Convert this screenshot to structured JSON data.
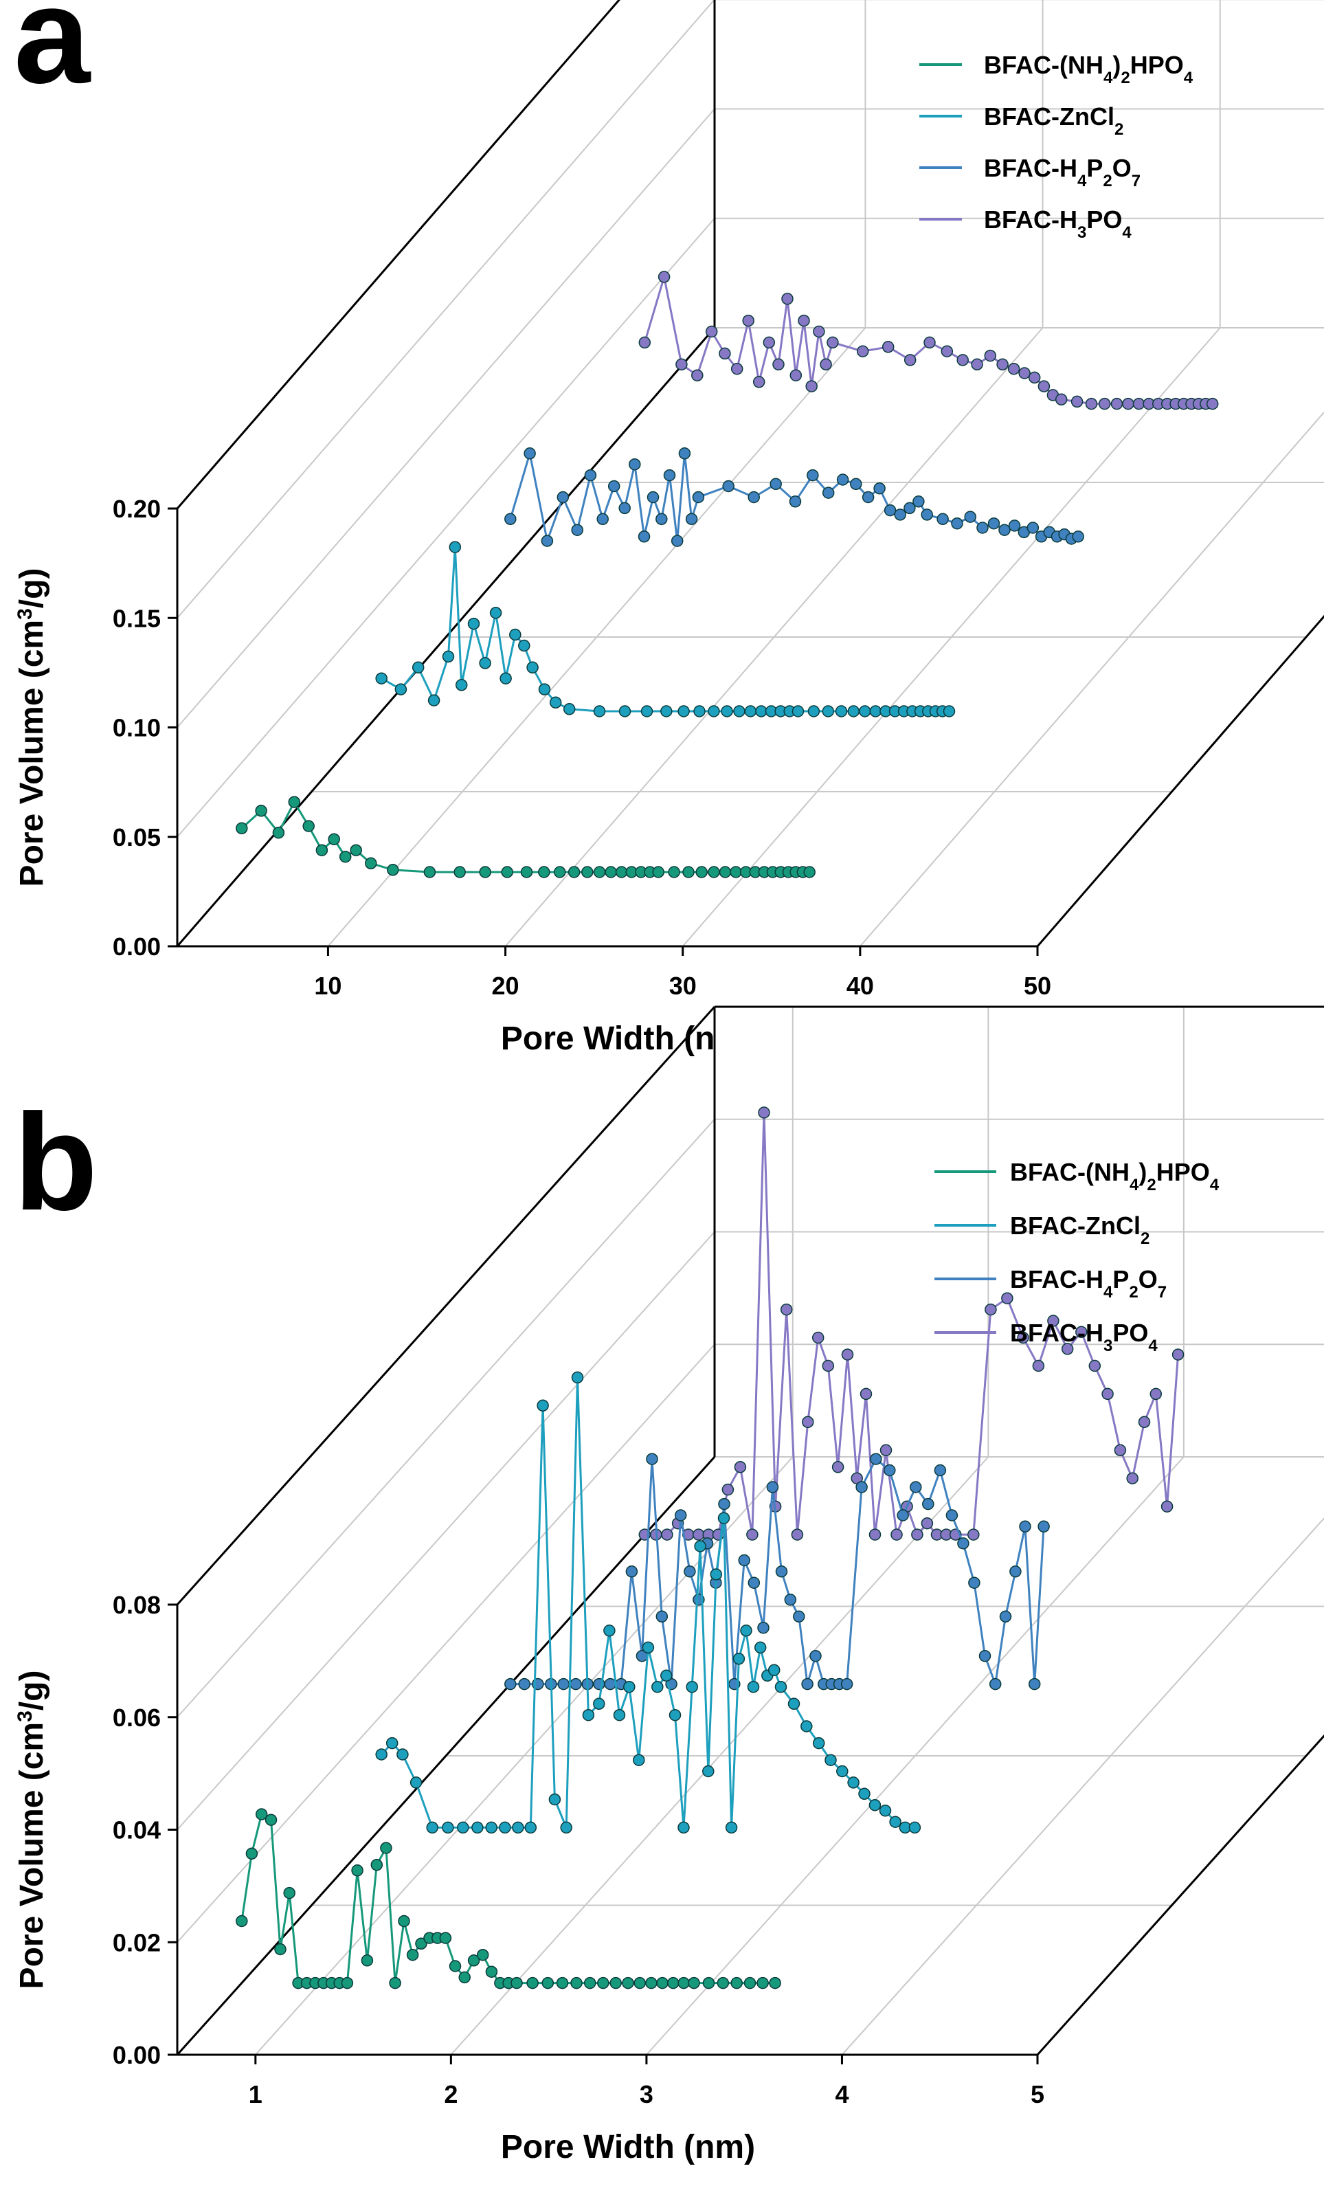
{
  "chart_data": [
    {
      "id": "a",
      "type": "line",
      "panel_label": "a",
      "xlabel": "Pore Width (nm)",
      "ylabel_main": "Pore Volume (cm",
      "ylabel_sup": "3",
      "ylabel_end": "/g)",
      "xlim": [
        1.5,
        50
      ],
      "ylim": [
        0,
        0.2
      ],
      "xticks": [
        10,
        20,
        30,
        40,
        50
      ],
      "xtick_labels": [
        "10",
        "20",
        "30",
        "40",
        "50"
      ],
      "yticks": [
        0,
        0.05,
        0.1,
        0.15,
        0.2
      ],
      "ytick_labels": [
        "0.00",
        "0.05",
        "0.10",
        "0.15",
        "0.20"
      ],
      "legend": [
        "BFAC-(NH4)2HPO4",
        "BFAC-ZnCl2",
        "BFAC-H4P2O7",
        "BFAC-H3PO4"
      ],
      "series": [
        {
          "name": "BFAC-(NH4)2HPO4",
          "color": "#16987a",
          "x": [
            1.6,
            1.8,
            2.0,
            2.2,
            2.4,
            2.6,
            2.8,
            3.0,
            3.2,
            3.5,
            4,
            5,
            6,
            7,
            8,
            9,
            10,
            11,
            12,
            13,
            14,
            15,
            16,
            17,
            18,
            19,
            20,
            22,
            24,
            26,
            28,
            30,
            32,
            34,
            36,
            38,
            40,
            42,
            44,
            46,
            48,
            50
          ],
          "y": [
            0.02,
            0.028,
            0.018,
            0.032,
            0.021,
            0.01,
            0.015,
            0.007,
            0.01,
            0.004,
            0.001,
            0,
            0,
            0,
            0,
            0,
            0,
            0,
            0,
            0,
            0,
            0,
            0,
            0,
            0,
            0,
            0,
            0,
            0,
            0,
            0,
            0,
            0,
            0,
            0,
            0,
            0,
            0,
            0,
            0,
            0,
            0
          ]
        },
        {
          "name": "BFAC-ZnCl2",
          "color": "#1d9fbe",
          "x": [
            1.6,
            1.8,
            2.0,
            2.2,
            2.4,
            2.5,
            2.6,
            2.8,
            3.0,
            3.2,
            3.4,
            3.6,
            3.8,
            4.0,
            4.3,
            4.6,
            5,
            6,
            7,
            8,
            9,
            10,
            11,
            12,
            13,
            14,
            15,
            16,
            17,
            18,
            19,
            20,
            22,
            24,
            26,
            28,
            30,
            32,
            34,
            36,
            38,
            40,
            42,
            44,
            46,
            48,
            50
          ],
          "y": [
            0.015,
            0.01,
            0.02,
            0.005,
            0.025,
            0.075,
            0.012,
            0.04,
            0.022,
            0.045,
            0.015,
            0.035,
            0.03,
            0.02,
            0.01,
            0.004,
            0.001,
            0,
            0,
            0,
            0,
            0,
            0,
            0,
            0,
            0,
            0,
            0,
            0,
            0,
            0,
            0,
            0,
            0,
            0,
            0,
            0,
            0,
            0,
            0,
            0,
            0,
            0,
            0,
            0,
            0,
            0
          ]
        },
        {
          "name": "BFAC-H4P2O7",
          "color": "#3f82bf",
          "x": [
            1.6,
            1.8,
            2.0,
            2.2,
            2.4,
            2.6,
            2.8,
            3.0,
            3.2,
            3.4,
            3.6,
            3.8,
            4.0,
            4.2,
            4.4,
            4.6,
            4.8,
            5,
            6,
            7,
            8,
            9,
            10,
            11,
            12,
            13,
            14,
            15,
            16,
            17,
            18,
            19,
            20,
            22,
            24,
            26,
            28,
            30,
            32,
            34,
            36,
            38,
            40,
            42,
            44,
            46,
            48,
            50
          ],
          "y": [
            0.02,
            0.05,
            0.01,
            0.03,
            0.015,
            0.04,
            0.02,
            0.035,
            0.025,
            0.045,
            0.012,
            0.03,
            0.02,
            0.04,
            0.01,
            0.05,
            0.02,
            0.03,
            0.035,
            0.03,
            0.036,
            0.028,
            0.04,
            0.032,
            0.038,
            0.036,
            0.03,
            0.034,
            0.024,
            0.022,
            0.025,
            0.028,
            0.022,
            0.02,
            0.018,
            0.021,
            0.016,
            0.018,
            0.015,
            0.017,
            0.014,
            0.016,
            0.012,
            0.014,
            0.012,
            0.013,
            0.011,
            0.012
          ]
        },
        {
          "name": "BFAC-H3PO4",
          "color": "#8678c4",
          "x": [
            1.6,
            1.8,
            2.0,
            2.2,
            2.4,
            2.6,
            2.8,
            3.0,
            3.2,
            3.4,
            3.6,
            3.8,
            4.0,
            4.2,
            4.4,
            4.6,
            4.8,
            5,
            6,
            7,
            8,
            9,
            10,
            11,
            12,
            13,
            14,
            15,
            16,
            17,
            18,
            19,
            20,
            22,
            24,
            26,
            28,
            30,
            32,
            34,
            36,
            38,
            40,
            42,
            44,
            46,
            48,
            50
          ],
          "y": [
            0.03,
            0.06,
            0.02,
            0.015,
            0.035,
            0.025,
            0.018,
            0.04,
            0.012,
            0.03,
            0.02,
            0.05,
            0.015,
            0.04,
            0.01,
            0.035,
            0.02,
            0.03,
            0.026,
            0.028,
            0.022,
            0.03,
            0.026,
            0.022,
            0.02,
            0.024,
            0.02,
            0.018,
            0.016,
            0.014,
            0.01,
            0.006,
            0.004,
            0.003,
            0.002,
            0.002,
            0.002,
            0.002,
            0.002,
            0.002,
            0.002,
            0.002,
            0.002,
            0.002,
            0.002,
            0.002,
            0.002,
            0.002
          ]
        }
      ]
    },
    {
      "id": "b",
      "type": "line",
      "panel_label": "b",
      "xlabel": "Pore Width (nm)",
      "ylabel_main": "Pore Volume (cm",
      "ylabel_sup": "3",
      "ylabel_end": "/g)",
      "xlim": [
        0.6,
        5
      ],
      "ylim": [
        0,
        0.08
      ],
      "xticks": [
        1,
        2,
        3,
        4,
        5
      ],
      "xtick_labels": [
        "1",
        "2",
        "3",
        "4",
        "5"
      ],
      "yticks": [
        0,
        0.02,
        0.04,
        0.06,
        0.08
      ],
      "ytick_labels": [
        "0.00",
        "0.02",
        "0.04",
        "0.06",
        "0.08"
      ],
      "legend": [
        "BFAC-(NH4)2HPO4",
        "BFAC-ZnCl2",
        "BFAC-H4P2O7",
        "BFAC-H3PO4"
      ],
      "series": [
        {
          "name": "BFAC-(NH4)2HPO4",
          "color": "#16987a",
          "x": [
            1.1,
            1.13,
            1.16,
            1.19,
            1.22,
            1.25,
            1.28,
            1.31,
            1.34,
            1.37,
            1.4,
            1.43,
            1.46,
            1.5,
            1.54,
            1.58,
            1.62,
            1.66,
            1.7,
            1.74,
            1.78,
            1.82,
            1.86,
            1.9,
            1.95,
            2.0,
            2.05,
            2.1,
            2.15,
            2.2,
            2.25,
            2.3,
            2.4,
            2.5,
            2.6,
            2.7,
            2.8,
            2.9,
            3.0,
            3.1,
            3.2,
            3.3,
            3.4,
            3.5,
            3.6,
            3.7,
            3.85,
            4.0,
            4.15,
            4.3,
            4.45,
            4.6
          ],
          "y": [
            0.011,
            0.023,
            0.03,
            0.029,
            0.006,
            0.016,
            0.0,
            0.0,
            0.0,
            0.0,
            0.0,
            0.0,
            0.0,
            0.02,
            0.004,
            0.021,
            0.024,
            0.0,
            0.011,
            0.005,
            0.007,
            0.008,
            0.008,
            0.008,
            0.003,
            0.001,
            0.004,
            0.005,
            0.002,
            0.0,
            0.0,
            0.0,
            0.0,
            0.0,
            0.0,
            0.0,
            0.0,
            0.0,
            0.0,
            0.0,
            0.0,
            0.0,
            0.0,
            0.0,
            0.0,
            0.0,
            0.0,
            0.0,
            0.0,
            0.0,
            0.0,
            0.0
          ]
        },
        {
          "name": "BFAC-ZnCl2",
          "color": "#1d9fbe",
          "x": [
            1.1,
            1.13,
            1.16,
            1.2,
            1.25,
            1.3,
            1.35,
            1.4,
            1.45,
            1.5,
            1.55,
            1.6,
            1.65,
            1.7,
            1.75,
            1.8,
            1.85,
            1.9,
            1.95,
            2.0,
            2.05,
            2.1,
            2.15,
            2.2,
            2.25,
            2.3,
            2.35,
            2.4,
            2.45,
            2.5,
            2.55,
            2.6,
            2.65,
            2.7,
            2.75,
            2.8,
            2.85,
            2.9,
            2.95,
            3.0,
            3.1,
            3.2,
            3.3,
            3.4,
            3.5,
            3.6,
            3.7,
            3.8,
            3.9,
            4.0,
            4.1,
            4.2
          ],
          "y": [
            0.013,
            0.015,
            0.013,
            0.008,
            0.0,
            0.0,
            0.0,
            0.0,
            0.0,
            0.0,
            0.0,
            0.0,
            0.075,
            0.005,
            0.0,
            0.08,
            0.02,
            0.022,
            0.035,
            0.02,
            0.025,
            0.012,
            0.032,
            0.025,
            0.027,
            0.02,
            0.0,
            0.025,
            0.05,
            0.01,
            0.045,
            0.055,
            0.0,
            0.03,
            0.035,
            0.025,
            0.032,
            0.027,
            0.028,
            0.025,
            0.022,
            0.018,
            0.015,
            0.012,
            0.01,
            0.008,
            0.006,
            0.004,
            0.003,
            0.001,
            0.0,
            0.0
          ]
        },
        {
          "name": "BFAC-H4P2O7",
          "color": "#3f82bf",
          "x": [
            1.1,
            1.14,
            1.18,
            1.22,
            1.26,
            1.3,
            1.34,
            1.38,
            1.42,
            1.46,
            1.5,
            1.54,
            1.58,
            1.62,
            1.66,
            1.7,
            1.74,
            1.78,
            1.82,
            1.86,
            1.9,
            1.95,
            2.0,
            2.05,
            2.1,
            2.15,
            2.2,
            2.25,
            2.3,
            2.35,
            2.4,
            2.45,
            2.5,
            2.55,
            2.6,
            2.7,
            2.8,
            2.9,
            3.0,
            3.1,
            3.2,
            3.3,
            3.4,
            3.5,
            3.6,
            3.7,
            3.8,
            3.9,
            4.0,
            4.1,
            4.2,
            4.3
          ],
          "y": [
            0.0,
            0.0,
            0.0,
            0.0,
            0.0,
            0.0,
            0.0,
            0.0,
            0.0,
            0.0,
            0.02,
            0.005,
            0.04,
            0.012,
            0.0,
            0.03,
            0.02,
            0.015,
            0.025,
            0.018,
            0.032,
            0.0,
            0.022,
            0.018,
            0.01,
            0.035,
            0.02,
            0.015,
            0.012,
            0.0,
            0.005,
            0.0,
            0.0,
            0.0,
            0.0,
            0.035,
            0.04,
            0.038,
            0.03,
            0.035,
            0.032,
            0.038,
            0.03,
            0.025,
            0.018,
            0.005,
            0.0,
            0.012,
            0.02,
            0.028,
            0.0,
            0.028
          ]
        },
        {
          "name": "BFAC-H3PO4",
          "color": "#8678c4",
          "x": [
            1.1,
            1.13,
            1.16,
            1.19,
            1.22,
            1.25,
            1.28,
            1.31,
            1.34,
            1.38,
            1.42,
            1.46,
            1.5,
            1.54,
            1.58,
            1.62,
            1.66,
            1.7,
            1.74,
            1.78,
            1.82,
            1.86,
            1.9,
            1.95,
            2.0,
            2.05,
            2.1,
            2.15,
            2.2,
            2.25,
            2.3,
            2.4,
            2.5,
            2.6,
            2.7,
            2.8,
            2.9,
            3.0,
            3.1,
            3.2,
            3.3,
            3.4,
            3.5,
            3.6,
            3.7,
            3.8,
            3.9
          ],
          "y": [
            0.0,
            0.0,
            0.0,
            0.002,
            0.0,
            0.0,
            0.0,
            0.0,
            0.008,
            0.012,
            0.0,
            0.075,
            0.005,
            0.04,
            0.0,
            0.02,
            0.035,
            0.03,
            0.012,
            0.032,
            0.01,
            0.025,
            0.0,
            0.015,
            0.0,
            0.005,
            0.0,
            0.002,
            0.0,
            0.0,
            0.0,
            0.0,
            0.04,
            0.042,
            0.035,
            0.03,
            0.038,
            0.033,
            0.036,
            0.03,
            0.025,
            0.015,
            0.01,
            0.02,
            0.025,
            0.005,
            0.032
          ]
        }
      ]
    }
  ]
}
